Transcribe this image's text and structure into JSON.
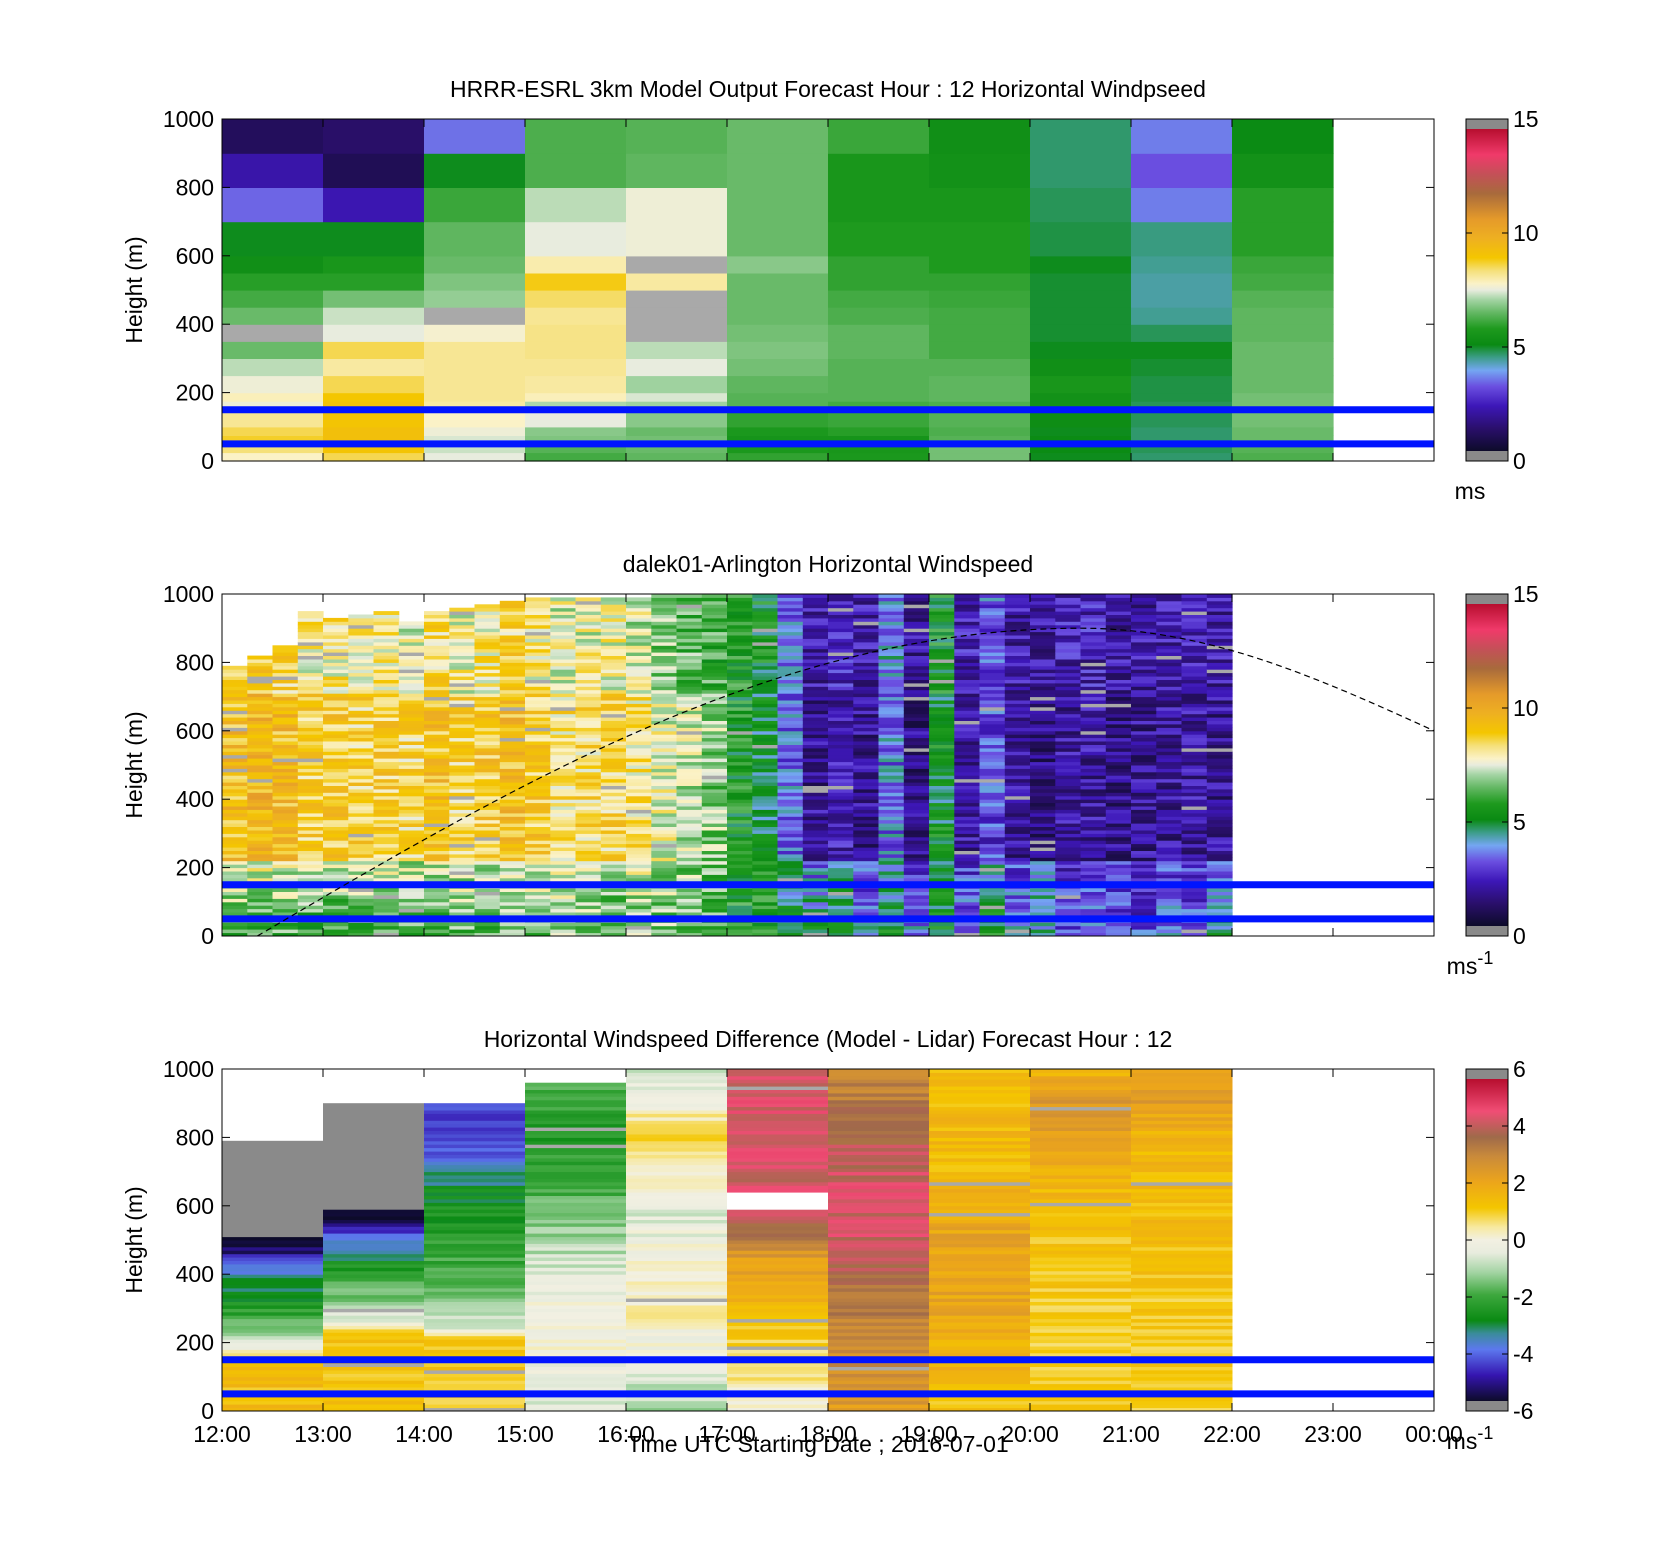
{
  "figure": {
    "xlabel": "Time UTC  Starting Date ; 2016-07-01",
    "x_ticks": [
      "12:00",
      "13:00",
      "14:00",
      "15:00",
      "16:00",
      "17:00",
      "18:00",
      "19:00",
      "20:00",
      "21:00",
      "22:00",
      "23:00",
      "00:00"
    ],
    "y_ticks": [
      "0",
      "200",
      "400",
      "600",
      "800",
      "1000"
    ]
  },
  "chart_data": [
    {
      "type": "heatmap",
      "title": "HRRR-ESRL 3km Model Output   Forecast Hour : 12 Horizontal Windpseed",
      "ylabel": "Height (m)",
      "xlim_hours": [
        12,
        24
      ],
      "ylim": [
        0,
        1000
      ],
      "x_ticks": [
        "12:00",
        "13:00",
        "14:00",
        "15:00",
        "16:00",
        "17:00",
        "18:00",
        "19:00",
        "20:00",
        "21:00",
        "22:00",
        "23:00",
        "00:00"
      ],
      "colorbar": {
        "range": [
          0,
          15
        ],
        "ticks": [
          "0",
          "5",
          "10",
          "15"
        ],
        "unit": "ms",
        "unit_sup": ""
      },
      "colormap": "speed",
      "x_start_hours": [
        12,
        13,
        14,
        15,
        16,
        17,
        18,
        19,
        20,
        21,
        22
      ],
      "column_width_hours": 1,
      "height_bins_m": [
        0,
        25,
        50,
        75,
        100,
        150,
        175,
        200,
        250,
        300,
        350,
        400,
        450,
        500,
        550,
        600,
        700,
        800,
        900,
        1000
      ],
      "values": [
        [
          7.8,
          8.6,
          7.5,
          6.1,
          6.4,
          5.9,
          5.6,
          6.6,
          4.9,
          4.5,
          6.2
        ],
        [
          8.4,
          9.1,
          7.3,
          6.3,
          6.5,
          5.6,
          5.5,
          6.6,
          5.0,
          4.6,
          6.3
        ],
        [
          8.8,
          9.3,
          7.4,
          6.7,
          6.6,
          5.4,
          5.4,
          6.3,
          5.0,
          4.5,
          6.5
        ],
        [
          8.6,
          9.3,
          7.6,
          6.8,
          6.5,
          5.6,
          5.8,
          6.2,
          4.9,
          4.5,
          6.5
        ],
        [
          8.2,
          9.1,
          7.8,
          7.5,
          6.8,
          5.9,
          6.0,
          6.3,
          5.1,
          4.6,
          6.6
        ],
        [
          7.6,
          9.2,
          8.1,
          7.1,
          7.0,
          6.3,
          6.1,
          6.2,
          5.3,
          4.6,
          6.6
        ],
        [
          7.9,
          9.0,
          8.2,
          7.9,
          7.4,
          6.3,
          6.3,
          6.4,
          5.3,
          4.7,
          6.6
        ],
        [
          7.6,
          8.6,
          8.2,
          8.1,
          7.0,
          6.4,
          6.3,
          6.4,
          5.5,
          4.7,
          6.5
        ],
        [
          7.2,
          8.1,
          8.2,
          8.2,
          7.5,
          6.6,
          6.3,
          6.3,
          5.2,
          4.8,
          6.5
        ],
        [
          6.5,
          8.6,
          8.2,
          8.3,
          7.2,
          6.7,
          6.4,
          6.1,
          4.9,
          4.9,
          6.5
        ],
        [
          0.5,
          7.5,
          7.7,
          8.3,
          0.5,
          6.6,
          6.4,
          6.1,
          4.8,
          4.6,
          6.4
        ],
        [
          6.5,
          7.3,
          0.5,
          8.2,
          0.5,
          6.5,
          6.2,
          6.1,
          4.8,
          4.3,
          6.4
        ],
        [
          6.1,
          6.6,
          6.9,
          8.5,
          0.5,
          6.5,
          6.1,
          6.0,
          4.8,
          4.2,
          6.3
        ],
        [
          5.8,
          5.8,
          6.7,
          8.9,
          8.1,
          6.5,
          5.9,
          5.9,
          4.8,
          4.2,
          6.1
        ],
        [
          5.2,
          5.5,
          6.5,
          8.0,
          0.5,
          6.8,
          5.9,
          5.7,
          4.9,
          4.3,
          6.0
        ],
        [
          4.9,
          4.9,
          6.4,
          7.5,
          7.6,
          6.5,
          5.7,
          5.7,
          4.7,
          4.4,
          5.8
        ],
        [
          3.2,
          2.0,
          6.0,
          7.2,
          7.6,
          6.5,
          5.5,
          5.5,
          4.6,
          3.4,
          5.8
        ],
        [
          1.9,
          0.7,
          4.9,
          6.2,
          6.4,
          6.5,
          5.5,
          5.3,
          4.5,
          3.0,
          5.3
        ],
        [
          0.8,
          1.0,
          3.3,
          6.2,
          6.3,
          6.5,
          6.0,
          5.2,
          4.5,
          3.4,
          5.0
        ],
        [
          1.0,
          1.9,
          2.7,
          5.6,
          6.1,
          6.3,
          6.0,
          5.3,
          4.6,
          3.7,
          4.9
        ]
      ],
      "reference_lines_m": [
        50,
        150
      ],
      "sun_curve": null
    },
    {
      "type": "heatmap",
      "title": "dalek01-Arlington  Horizontal Windspeed",
      "ylabel": "Height (m)",
      "xlim_hours": [
        12,
        24
      ],
      "ylim": [
        0,
        1000
      ],
      "x_ticks": [
        "12:00",
        "13:00",
        "14:00",
        "15:00",
        "16:00",
        "17:00",
        "18:00",
        "19:00",
        "20:00",
        "21:00",
        "22:00",
        "23:00",
        "00:00"
      ],
      "colorbar": {
        "range": [
          0,
          15
        ],
        "ticks": [
          "0",
          "5",
          "10",
          "15"
        ],
        "unit": "ms",
        "unit_sup": "-1"
      },
      "colormap": "speed",
      "x_start_hours": [
        12,
        12.25,
        12.5,
        12.75,
        13,
        13.25,
        13.5,
        13.75,
        14,
        14.25,
        14.5,
        14.75,
        15,
        15.25,
        15.5,
        15.75,
        16,
        16.25,
        16.5,
        16.75,
        17,
        17.25,
        17.5,
        17.75,
        18,
        18.25,
        18.5,
        18.75,
        19,
        19.25,
        19.5,
        19.75,
        20,
        20.25,
        20.5,
        20.75,
        21,
        21.25,
        21.5,
        21.75
      ],
      "column_width_hours": 0.25,
      "top_heights_m": [
        790,
        820,
        850,
        950,
        930,
        940,
        950,
        920,
        950,
        960,
        970,
        980,
        990,
        990,
        990,
        990,
        990,
        1000,
        1000,
        1000,
        1000,
        1000,
        1000,
        1000,
        1000,
        1000,
        1000,
        1000,
        1000,
        1000,
        1000,
        1000,
        1000,
        1000,
        1000,
        1000,
        1000,
        1000,
        1000,
        1000
      ],
      "profile_low": [
        6.2,
        6.0,
        6.1,
        5.8,
        6.0,
        6.2,
        6.3,
        6.0,
        5.9,
        6.4,
        6.1,
        6.5,
        6.3,
        6.6,
        6.4,
        6.2,
        6.8,
        6.6,
        6.5,
        6.3,
        5.6,
        5.9,
        5.0,
        4.8,
        5.4,
        3.8,
        4.9,
        3.7,
        5.2,
        3.4,
        5.1,
        3.6,
        4.5,
        2.9,
        3.6,
        3.2,
        2.8,
        3.4,
        3.0,
        4.8
      ],
      "profile_high": [
        9.3,
        9.6,
        9.4,
        8.7,
        8.9,
        8.6,
        8.8,
        8.5,
        9.2,
        8.6,
        8.9,
        9.4,
        8.8,
        8.4,
        8.5,
        8.6,
        8.2,
        7.6,
        7.2,
        6.8,
        5.4,
        4.8,
        3.2,
        1.6,
        2.0,
        1.6,
        3.4,
        1.4,
        5.0,
        1.8,
        2.8,
        1.6,
        1.4,
        1.8,
        1.8,
        1.5,
        1.6,
        1.7,
        1.8,
        1.6
      ],
      "transition_height_m": 220,
      "reference_lines_m": [
        50,
        150
      ],
      "sun_curve": {
        "start_hours": 12.35,
        "peak_hours": 20.5,
        "peak_m": 900,
        "end_hours": 24,
        "end_m": 600
      }
    },
    {
      "type": "heatmap",
      "title": "Horizontal Windspeed Difference (Model - Lidar) Forecast Hour : 12",
      "ylabel": "Height (m)",
      "xlim_hours": [
        12,
        24
      ],
      "ylim": [
        0,
        1000
      ],
      "x_ticks": [
        "12:00",
        "13:00",
        "14:00",
        "15:00",
        "16:00",
        "17:00",
        "18:00",
        "19:00",
        "20:00",
        "21:00",
        "22:00",
        "23:00",
        "00:00"
      ],
      "colorbar": {
        "range": [
          -6,
          6
        ],
        "ticks": [
          "-6",
          "-4",
          "-2",
          "0",
          "2",
          "4",
          "6"
        ],
        "unit": "ms",
        "unit_sup": "-1"
      },
      "colormap": "diff",
      "x_start_hours": [
        12,
        13,
        14,
        15,
        16,
        17,
        18,
        19,
        20,
        21
      ],
      "column_width_hours": 1,
      "top_heights_m": [
        790,
        900,
        900,
        960,
        1000,
        1000,
        1000,
        1000,
        1000,
        1000
      ],
      "difference_profiles": [
        [
          [
            0,
            1.6
          ],
          [
            150,
            1.2
          ],
          [
            200,
            -0.8
          ],
          [
            300,
            -2.5
          ],
          [
            400,
            -3.6
          ],
          [
            450,
            -5.0
          ],
          [
            520,
            -6.5
          ],
          [
            790,
            -6.5
          ]
        ],
        [
          [
            0,
            1.4
          ],
          [
            220,
            1.3
          ],
          [
            250,
            0.0
          ],
          [
            320,
            -1.4
          ],
          [
            420,
            -2.6
          ],
          [
            500,
            -4.0
          ],
          [
            600,
            -6.5
          ],
          [
            900,
            -6.5
          ]
        ],
        [
          [
            0,
            1.2
          ],
          [
            220,
            1.2
          ],
          [
            240,
            -0.8
          ],
          [
            400,
            -2.0
          ],
          [
            650,
            -3.0
          ],
          [
            750,
            -4.3
          ],
          [
            900,
            -4.8
          ]
        ],
        [
          [
            0,
            -0.6
          ],
          [
            250,
            0.1
          ],
          [
            400,
            -0.5
          ],
          [
            600,
            -1.8
          ],
          [
            800,
            -2.6
          ],
          [
            960,
            -2.0
          ]
        ],
        [
          [
            0,
            -1.2
          ],
          [
            300,
            0.4
          ],
          [
            600,
            -0.6
          ],
          [
            800,
            1.0
          ],
          [
            1000,
            -0.8
          ]
        ],
        [
          [
            0,
            0.0
          ],
          [
            150,
            0.8
          ],
          [
            250,
            1.3
          ],
          [
            450,
            2.4
          ],
          [
            550,
            4.2
          ],
          [
            600,
            4.6
          ],
          [
            700,
            4.3
          ],
          [
            800,
            4.6
          ],
          [
            1000,
            4.4
          ]
        ],
        [
          [
            0,
            2.5
          ],
          [
            200,
            3.1
          ],
          [
            350,
            3.7
          ],
          [
            450,
            4.3
          ],
          [
            650,
            4.5
          ],
          [
            850,
            3.8
          ],
          [
            1000,
            3.0
          ]
        ],
        [
          [
            0,
            1.2
          ],
          [
            300,
            2.2
          ],
          [
            500,
            2.2
          ],
          [
            700,
            1.5
          ],
          [
            1000,
            1.5
          ]
        ],
        [
          [
            0,
            1.1
          ],
          [
            300,
            1.1
          ],
          [
            600,
            1.4
          ],
          [
            800,
            2.2
          ],
          [
            900,
            2.6
          ],
          [
            1000,
            1.6
          ]
        ],
        [
          [
            0,
            1.0
          ],
          [
            300,
            1.1
          ],
          [
            600,
            1.5
          ],
          [
            800,
            1.6
          ],
          [
            900,
            2.4
          ],
          [
            1000,
            2.0
          ]
        ]
      ],
      "reference_lines_m": [
        50,
        150
      ],
      "sun_curve": null
    }
  ]
}
